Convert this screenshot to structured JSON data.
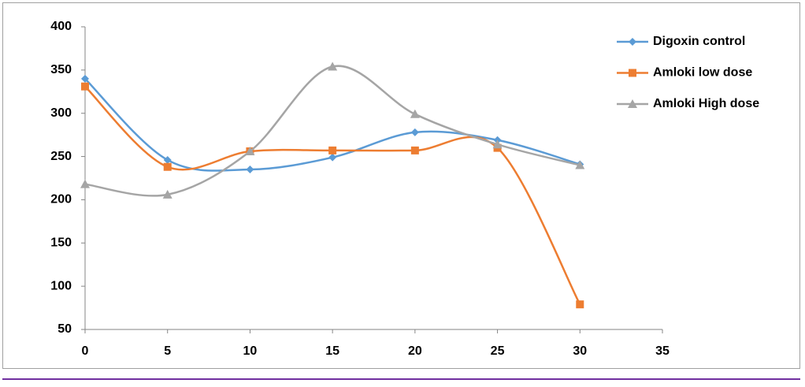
{
  "chart_data": {
    "type": "line",
    "smooth": true,
    "x": [
      0,
      5,
      10,
      15,
      20,
      25,
      30
    ],
    "series": [
      {
        "name": "Digoxin control",
        "color": "#5b9bd5",
        "marker": "diamond",
        "values": [
          340,
          246,
          235,
          249,
          278,
          269,
          241
        ]
      },
      {
        "name": "Amloki low dose",
        "color": "#ed7d31",
        "marker": "square",
        "values": [
          331,
          238,
          256,
          257,
          257,
          260,
          79
        ]
      },
      {
        "name": "Amloki High dose",
        "color": "#a5a5a5",
        "marker": "triangle",
        "values": [
          218,
          206,
          256,
          354,
          299,
          264,
          240
        ]
      }
    ],
    "xlim": [
      0,
      35
    ],
    "xticks": [
      0,
      5,
      10,
      15,
      20,
      25,
      30,
      35
    ],
    "ylim": [
      50,
      400
    ],
    "yticks": [
      50,
      100,
      150,
      200,
      250,
      300,
      350,
      400
    ],
    "grid": false,
    "legend": "right"
  }
}
